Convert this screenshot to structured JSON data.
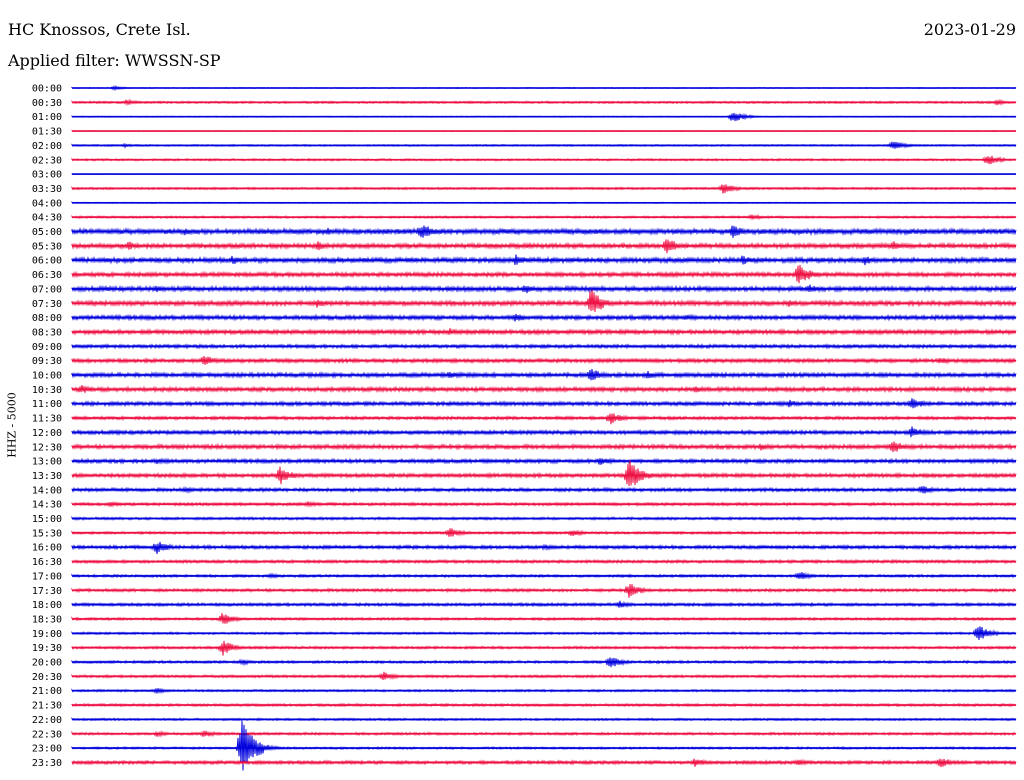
{
  "header": {
    "station": "HC Knossos, Crete Isl.",
    "date": "2023-01-29",
    "filter": "Applied filter: WWSSN-SP",
    "channel": "HHZ - 5000"
  },
  "chart_data": {
    "type": "line",
    "title": "HC Knossos, Crete Isl.",
    "subtitle": "Applied filter: WWSSN-SP",
    "ylabel": "HHZ - 5000",
    "xlabel": "",
    "grid": false,
    "colors": [
      "#0000dd",
      "#ee1144"
    ],
    "rows": [
      "00:00",
      "00:30",
      "01:00",
      "01:30",
      "02:00",
      "02:30",
      "03:00",
      "03:30",
      "04:00",
      "04:30",
      "05:00",
      "05:30",
      "06:00",
      "06:30",
      "07:00",
      "07:30",
      "08:00",
      "08:30",
      "09:00",
      "09:30",
      "10:00",
      "10:30",
      "11:00",
      "11:30",
      "12:00",
      "12:30",
      "13:00",
      "13:30",
      "14:00",
      "14:30",
      "15:00",
      "15:30",
      "16:00",
      "16:30",
      "17:00",
      "17:30",
      "18:00",
      "18:30",
      "19:00",
      "19:30",
      "20:00",
      "20:30",
      "21:00",
      "21:30",
      "22:00",
      "22:30",
      "23:00",
      "23:30"
    ],
    "noise": [
      0.5,
      1,
      0.5,
      0.5,
      0.8,
      1,
      0.3,
      1,
      0.5,
      1,
      2.5,
      2.2,
      2.3,
      2,
      2.2,
      2.2,
      2,
      2,
      1.6,
      1.8,
      2,
      2,
      1.8,
      1.5,
      1.8,
      2,
      1.8,
      1.8,
      1.6,
      1.4,
      1.2,
      1.2,
      1.6,
      1.4,
      1.2,
      1.4,
      1.4,
      1.2,
      1,
      1.2,
      1.2,
      1.2,
      1,
      1.2,
      1,
      1.2,
      1,
      1.6
    ],
    "events": [
      {
        "row": "00:00",
        "pos": 0.045,
        "amp": 2
      },
      {
        "row": "00:30",
        "pos": 0.058,
        "amp": 3
      },
      {
        "row": "00:30",
        "pos": 0.98,
        "amp": 3
      },
      {
        "row": "01:00",
        "pos": 0.7,
        "amp": 6
      },
      {
        "row": "02:00",
        "pos": 0.055,
        "amp": 2
      },
      {
        "row": "02:00",
        "pos": 0.87,
        "amp": 5
      },
      {
        "row": "02:30",
        "pos": 0.97,
        "amp": 6
      },
      {
        "row": "03:30",
        "pos": 0.69,
        "amp": 6
      },
      {
        "row": "04:30",
        "pos": 0.72,
        "amp": 3
      },
      {
        "row": "05:00",
        "pos": 0.37,
        "amp": 9
      },
      {
        "row": "05:00",
        "pos": 0.7,
        "amp": 7
      },
      {
        "row": "05:00",
        "pos": 0.12,
        "amp": 4
      },
      {
        "row": "05:00",
        "pos": 0.27,
        "amp": 4
      },
      {
        "row": "05:30",
        "pos": 0.06,
        "amp": 5
      },
      {
        "row": "05:30",
        "pos": 0.26,
        "amp": 5
      },
      {
        "row": "05:30",
        "pos": 0.63,
        "amp": 9
      },
      {
        "row": "05:30",
        "pos": 0.87,
        "amp": 5
      },
      {
        "row": "06:00",
        "pos": 0.17,
        "amp": 5
      },
      {
        "row": "06:00",
        "pos": 0.47,
        "amp": 6
      },
      {
        "row": "06:00",
        "pos": 0.71,
        "amp": 5
      },
      {
        "row": "06:00",
        "pos": 0.84,
        "amp": 5
      },
      {
        "row": "06:30",
        "pos": 0.77,
        "amp": 12
      },
      {
        "row": "07:00",
        "pos": 0.09,
        "amp": 4
      },
      {
        "row": "07:00",
        "pos": 0.48,
        "amp": 5
      },
      {
        "row": "07:00",
        "pos": 0.78,
        "amp": 5
      },
      {
        "row": "07:30",
        "pos": 0.26,
        "amp": 5
      },
      {
        "row": "07:30",
        "pos": 0.55,
        "amp": 15
      },
      {
        "row": "07:30",
        "pos": 0.76,
        "amp": 4
      },
      {
        "row": "08:00",
        "pos": 0.47,
        "amp": 5
      },
      {
        "row": "08:00",
        "pos": 0.65,
        "amp": 4
      },
      {
        "row": "08:30",
        "pos": 0.4,
        "amp": 4
      },
      {
        "row": "09:30",
        "pos": 0.14,
        "amp": 6
      },
      {
        "row": "09:30",
        "pos": 0.92,
        "amp": 4
      },
      {
        "row": "10:00",
        "pos": 0.4,
        "amp": 4
      },
      {
        "row": "10:00",
        "pos": 0.55,
        "amp": 7
      },
      {
        "row": "10:00",
        "pos": 0.61,
        "amp": 4
      },
      {
        "row": "10:30",
        "pos": 0.01,
        "amp": 5
      },
      {
        "row": "10:30",
        "pos": 0.66,
        "amp": 4
      },
      {
        "row": "11:00",
        "pos": 0.76,
        "amp": 4
      },
      {
        "row": "11:00",
        "pos": 0.89,
        "amp": 7
      },
      {
        "row": "11:30",
        "pos": 0.57,
        "amp": 7
      },
      {
        "row": "12:00",
        "pos": 0.89,
        "amp": 6
      },
      {
        "row": "12:30",
        "pos": 0.73,
        "amp": 4
      },
      {
        "row": "12:30",
        "pos": 0.87,
        "amp": 7
      },
      {
        "row": "13:00",
        "pos": 0.56,
        "amp": 5
      },
      {
        "row": "13:00",
        "pos": 0.09,
        "amp": 3
      },
      {
        "row": "13:30",
        "pos": 0.22,
        "amp": 10
      },
      {
        "row": "13:30",
        "pos": 0.59,
        "amp": 18
      },
      {
        "row": "14:00",
        "pos": 0.9,
        "amp": 5
      },
      {
        "row": "14:00",
        "pos": 0.12,
        "amp": 3
      },
      {
        "row": "14:30",
        "pos": 0.04,
        "amp": 3
      },
      {
        "row": "14:30",
        "pos": 0.25,
        "amp": 3
      },
      {
        "row": "15:30",
        "pos": 0.4,
        "amp": 6
      },
      {
        "row": "15:30",
        "pos": 0.53,
        "amp": 4
      },
      {
        "row": "16:00",
        "pos": 0.09,
        "amp": 7
      },
      {
        "row": "16:00",
        "pos": 0.5,
        "amp": 3
      },
      {
        "row": "17:00",
        "pos": 0.21,
        "amp": 3
      },
      {
        "row": "17:00",
        "pos": 0.77,
        "amp": 5
      },
      {
        "row": "17:30",
        "pos": 0.59,
        "amp": 8
      },
      {
        "row": "18:00",
        "pos": 0.58,
        "amp": 4
      },
      {
        "row": "18:30",
        "pos": 0.16,
        "amp": 7
      },
      {
        "row": "19:00",
        "pos": 0.96,
        "amp": 9
      },
      {
        "row": "19:30",
        "pos": 0.16,
        "amp": 8
      },
      {
        "row": "20:00",
        "pos": 0.57,
        "amp": 7
      },
      {
        "row": "20:00",
        "pos": 0.18,
        "amp": 3
      },
      {
        "row": "20:30",
        "pos": 0.33,
        "amp": 5
      },
      {
        "row": "21:00",
        "pos": 0.09,
        "amp": 3
      },
      {
        "row": "22:30",
        "pos": 0.09,
        "amp": 3
      },
      {
        "row": "22:30",
        "pos": 0.14,
        "amp": 4
      },
      {
        "row": "23:00",
        "pos": 0.18,
        "amp": 34
      },
      {
        "row": "23:30",
        "pos": 0.66,
        "amp": 5
      },
      {
        "row": "23:30",
        "pos": 0.77,
        "amp": 4
      },
      {
        "row": "23:30",
        "pos": 0.92,
        "amp": 6
      }
    ]
  }
}
